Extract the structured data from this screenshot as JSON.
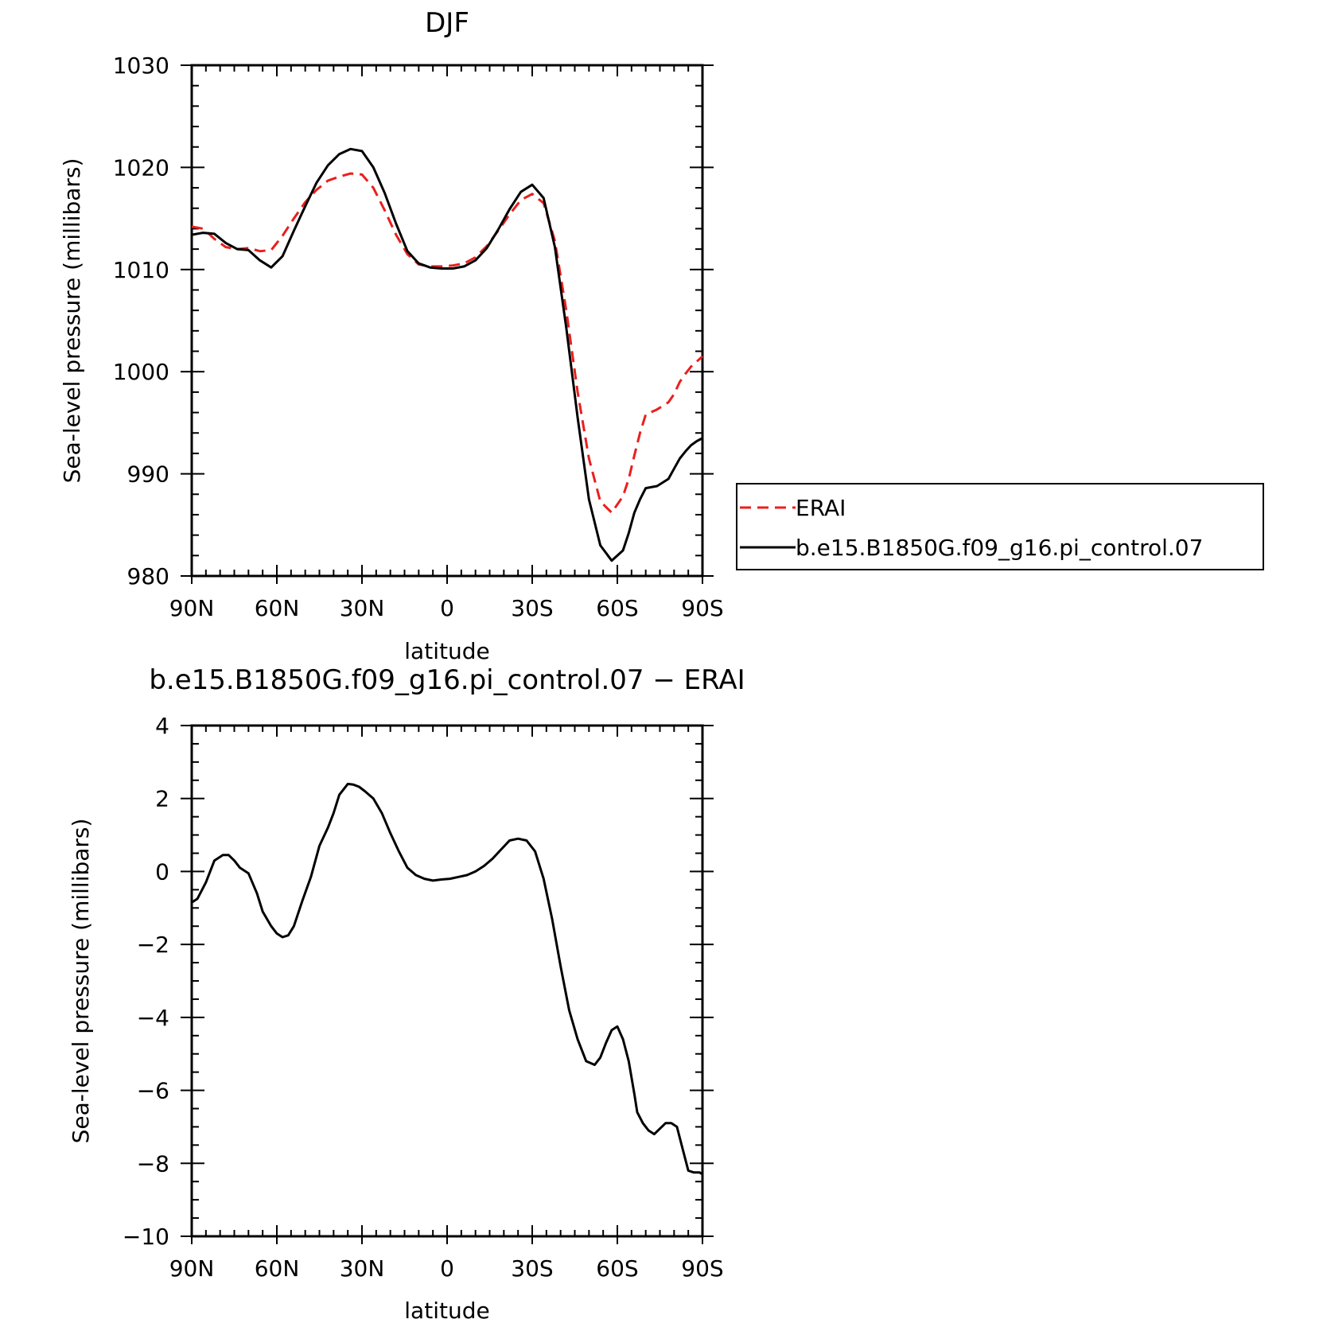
{
  "chart_data": [
    {
      "type": "line",
      "title": "DJF",
      "xlabel": "latitude",
      "ylabel": "Sea-level pressure (millibars)",
      "xlim": [
        90,
        -90
      ],
      "ylim": [
        980,
        1030
      ],
      "x_ticks": [
        90,
        60,
        30,
        0,
        -30,
        -60,
        -90
      ],
      "x_tick_labels": [
        "90N",
        "60N",
        "30N",
        "0",
        "30S",
        "60S",
        "90S"
      ],
      "y_ticks": [
        980,
        990,
        1000,
        1010,
        1020,
        1030
      ],
      "y_tick_labels": [
        "980",
        "990",
        "1000",
        "1010",
        "1020",
        "1030"
      ],
      "legend_position": "right",
      "grid": false,
      "series": [
        {
          "name": "ERAI",
          "color": "#e8201e",
          "dash": "dashed",
          "x": [
            90,
            86,
            82,
            78,
            74,
            70,
            66,
            62,
            58,
            54,
            50,
            46,
            42,
            38,
            34,
            30,
            26,
            22,
            18,
            14,
            10,
            6,
            2,
            -2,
            -6,
            -10,
            -14,
            -18,
            -22,
            -26,
            -30,
            -34,
            -38,
            -42,
            -46,
            -50,
            -54,
            -58,
            -62,
            -64,
            -66,
            -68,
            -70,
            -74,
            -78,
            -80,
            -82,
            -84,
            -86,
            -88,
            -90
          ],
          "y": [
            1014.2,
            1014.0,
            1013.0,
            1012.2,
            1012.0,
            1012.1,
            1011.8,
            1011.9,
            1013.3,
            1015.0,
            1016.6,
            1017.8,
            1018.7,
            1019.1,
            1019.4,
            1019.3,
            1018.0,
            1015.8,
            1013.4,
            1011.5,
            1010.5,
            1010.3,
            1010.3,
            1010.4,
            1010.6,
            1011.2,
            1012.3,
            1013.8,
            1015.4,
            1016.8,
            1017.4,
            1016.5,
            1012.8,
            1006.0,
            998.0,
            991.5,
            987.3,
            986.2,
            987.8,
            989.5,
            991.8,
            994.0,
            995.8,
            996.3,
            997.0,
            997.8,
            999.0,
            999.8,
            1000.5,
            1001.0,
            1001.5
          ]
        },
        {
          "name": "b.e15.B1850G.f09_g16.pi_control.07",
          "color": "#000000",
          "dash": "solid",
          "x": [
            90,
            86,
            82,
            78,
            74,
            70,
            66,
            62,
            58,
            54,
            50,
            46,
            42,
            38,
            34,
            30,
            26,
            22,
            18,
            14,
            10,
            6,
            2,
            -2,
            -6,
            -10,
            -14,
            -18,
            -22,
            -26,
            -30,
            -34,
            -38,
            -42,
            -46,
            -50,
            -54,
            -58,
            -62,
            -64,
            -66,
            -68,
            -70,
            -74,
            -78,
            -80,
            -82,
            -84,
            -86,
            -88,
            -90
          ],
          "y": [
            1013.4,
            1013.6,
            1013.5,
            1012.6,
            1012.0,
            1011.9,
            1010.9,
            1010.2,
            1011.3,
            1013.8,
            1016.2,
            1018.5,
            1020.2,
            1021.3,
            1021.8,
            1021.6,
            1020.0,
            1017.5,
            1014.5,
            1011.8,
            1010.6,
            1010.2,
            1010.1,
            1010.1,
            1010.3,
            1010.9,
            1012.1,
            1013.9,
            1015.9,
            1017.6,
            1018.3,
            1017.0,
            1012.2,
            1004.3,
            995.5,
            987.5,
            983.0,
            981.5,
            982.5,
            984.2,
            986.2,
            987.5,
            988.6,
            988.8,
            989.5,
            990.5,
            991.5,
            992.2,
            992.8,
            993.2,
            993.5
          ]
        }
      ]
    },
    {
      "type": "line",
      "title": "b.e15.B1850G.f09_g16.pi_control.07 − ERAI",
      "xlabel": "latitude",
      "ylabel": "Sea-level pressure (millibars)",
      "xlim": [
        90,
        -90
      ],
      "ylim": [
        -10,
        4
      ],
      "x_ticks": [
        90,
        60,
        30,
        0,
        -30,
        -60,
        -90
      ],
      "x_tick_labels": [
        "90N",
        "60N",
        "30N",
        "0",
        "30S",
        "60S",
        "90S"
      ],
      "y_ticks": [
        -10,
        -8,
        -6,
        -4,
        -2,
        0,
        2,
        4
      ],
      "y_tick_labels": [
        "−10",
        "−8",
        "−6",
        "−4",
        "−2",
        "0",
        "2",
        "4"
      ],
      "grid": false,
      "series": [
        {
          "color": "#000000",
          "dash": "solid",
          "x": [
            90,
            88,
            85,
            82,
            79,
            77,
            75,
            73,
            70,
            67,
            65,
            62,
            60,
            58,
            56,
            54,
            51,
            48,
            45,
            42,
            40,
            38,
            35,
            33,
            31,
            29,
            26,
            23,
            20,
            17,
            14,
            11,
            8,
            5,
            2,
            -1,
            -4,
            -7,
            -10,
            -13,
            -16,
            -19,
            -22,
            -25,
            -28,
            -31,
            -34,
            -37,
            -40,
            -43,
            -46,
            -49,
            -52,
            -54,
            -56,
            -58,
            -60,
            -62,
            -64,
            -66,
            -67,
            -69,
            -71,
            -73,
            -75,
            -77,
            -79,
            -81,
            -83,
            -85,
            -87,
            -89,
            -90
          ],
          "y": [
            -0.85,
            -0.75,
            -0.3,
            0.3,
            0.45,
            0.45,
            0.3,
            0.1,
            -0.05,
            -0.6,
            -1.1,
            -1.5,
            -1.7,
            -1.8,
            -1.75,
            -1.5,
            -0.8,
            -0.15,
            0.7,
            1.2,
            1.6,
            2.1,
            2.4,
            2.38,
            2.32,
            2.2,
            2.0,
            1.6,
            1.05,
            0.55,
            0.1,
            -0.1,
            -0.2,
            -0.25,
            -0.22,
            -0.2,
            -0.15,
            -0.1,
            0.0,
            0.15,
            0.35,
            0.6,
            0.85,
            0.9,
            0.85,
            0.55,
            -0.2,
            -1.3,
            -2.6,
            -3.8,
            -4.6,
            -5.2,
            -5.3,
            -5.1,
            -4.7,
            -4.35,
            -4.25,
            -4.6,
            -5.2,
            -6.1,
            -6.6,
            -6.9,
            -7.1,
            -7.2,
            -7.05,
            -6.9,
            -6.9,
            -7.0,
            -7.6,
            -8.2,
            -8.25,
            -8.25,
            -8.3
          ]
        }
      ]
    }
  ]
}
